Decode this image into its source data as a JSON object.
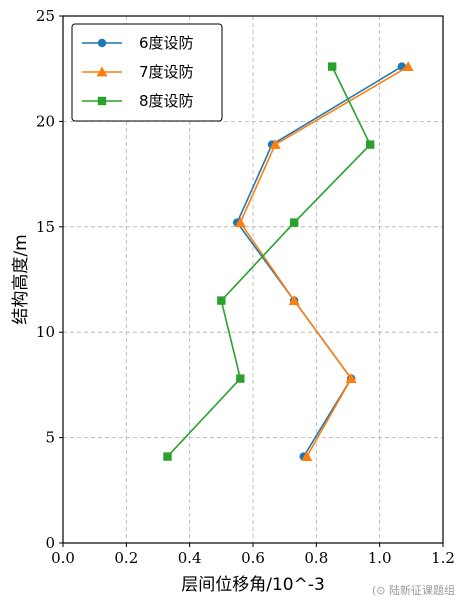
{
  "chart_data": {
    "type": "line",
    "xlabel": "层间位移角/10^-3",
    "ylabel": "结构高度/m",
    "xlim": [
      0.0,
      1.2
    ],
    "ylim": [
      0,
      25
    ],
    "xticks": [
      0.0,
      0.2,
      0.4,
      0.6,
      0.8,
      1.0,
      1.2
    ],
    "xtick_labels": [
      "0.0",
      "0.2",
      "0.4",
      "0.6",
      "0.8",
      "1.0",
      "1.2"
    ],
    "yticks": [
      0,
      5,
      10,
      15,
      20,
      25
    ],
    "ytick_labels": [
      "0",
      "5",
      "10",
      "15",
      "20",
      "25"
    ],
    "grid": true,
    "legend_position": "top-left",
    "series": [
      {
        "name": "6度设防",
        "color": "#1f77b4",
        "marker": "circle",
        "points": [
          [
            0.76,
            4.1
          ],
          [
            0.91,
            7.8
          ],
          [
            0.73,
            11.5
          ],
          [
            0.55,
            15.2
          ],
          [
            0.66,
            18.9
          ],
          [
            1.07,
            22.6
          ]
        ]
      },
      {
        "name": "7度设防",
        "color": "#ff7f0e",
        "marker": "triangle",
        "points": [
          [
            0.77,
            4.1
          ],
          [
            0.91,
            7.8
          ],
          [
            0.73,
            11.5
          ],
          [
            0.56,
            15.2
          ],
          [
            0.67,
            18.9
          ],
          [
            1.09,
            22.6
          ]
        ]
      },
      {
        "name": "8度设防",
        "color": "#2ca02c",
        "marker": "square",
        "points": [
          [
            0.33,
            4.1
          ],
          [
            0.56,
            7.8
          ],
          [
            0.5,
            11.5
          ],
          [
            0.73,
            15.2
          ],
          [
            0.97,
            18.9
          ],
          [
            0.85,
            22.6
          ]
        ]
      }
    ]
  },
  "watermark": "(⊙ 陆新征课题组"
}
